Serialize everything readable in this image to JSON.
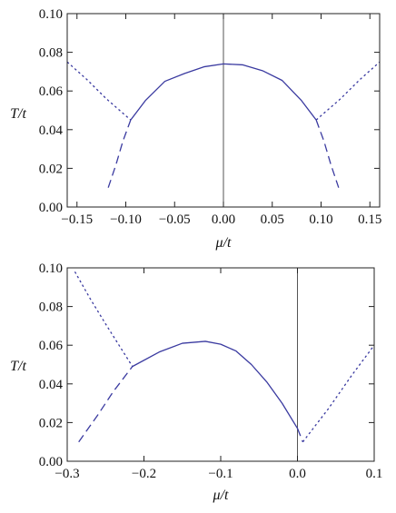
{
  "chart_data": [
    {
      "type": "line",
      "xlabel": "μ/t",
      "ylabel": "T/t",
      "xlim": [
        -0.16,
        0.16
      ],
      "ylim": [
        0.0,
        0.1
      ],
      "xticks": [
        -0.15,
        -0.1,
        -0.05,
        0.0,
        0.05,
        0.1,
        0.15
      ],
      "xtick_labels": [
        "−0.15",
        "−0.10",
        "−0.05",
        "0.00",
        "0.05",
        "0.10",
        "0.15"
      ],
      "yticks": [
        0.0,
        0.02,
        0.04,
        0.06,
        0.08,
        0.1
      ],
      "ytick_labels": [
        "0.00",
        "0.02",
        "0.04",
        "0.06",
        "0.08",
        "0.10"
      ],
      "vline_x": 0.0,
      "series": [
        {
          "style": "solid",
          "color": "#3a3aa0",
          "x": [
            -0.095,
            -0.08,
            -0.06,
            -0.04,
            -0.02,
            0.0,
            0.02,
            0.04,
            0.06,
            0.08,
            0.095
          ],
          "y": [
            0.045,
            0.055,
            0.065,
            0.069,
            0.0725,
            0.074,
            0.0735,
            0.0705,
            0.0655,
            0.055,
            0.045
          ]
        },
        {
          "style": "dashed",
          "color": "#3a3aa0",
          "x": [
            -0.118,
            -0.11,
            -0.103,
            -0.095
          ],
          "y": [
            0.01,
            0.022,
            0.034,
            0.045
          ]
        },
        {
          "style": "dashed",
          "color": "#3a3aa0",
          "x": [
            0.095,
            0.103,
            0.11,
            0.118
          ],
          "y": [
            0.045,
            0.034,
            0.022,
            0.01
          ]
        },
        {
          "style": "dotted",
          "color": "#3a3aa0",
          "x": [
            -0.16,
            -0.14,
            -0.12,
            -0.095
          ],
          "y": [
            0.075,
            0.066,
            0.056,
            0.045
          ]
        },
        {
          "style": "dotted",
          "color": "#3a3aa0",
          "x": [
            0.095,
            0.12,
            0.14,
            0.16
          ],
          "y": [
            0.045,
            0.056,
            0.066,
            0.075
          ]
        }
      ]
    },
    {
      "type": "line",
      "xlabel": "μ/t",
      "ylabel": "T/t",
      "xlim": [
        -0.3,
        0.1
      ],
      "ylim": [
        0.0,
        0.1
      ],
      "xticks": [
        -0.3,
        -0.2,
        -0.1,
        0.0,
        0.1
      ],
      "xtick_labels": [
        "−0.3",
        "−0.2",
        "−0.1",
        "0.0",
        "0.1"
      ],
      "yticks": [
        0.0,
        0.02,
        0.04,
        0.06,
        0.08,
        0.1
      ],
      "ytick_labels": [
        "0.00",
        "0.02",
        "0.04",
        "0.06",
        "0.08",
        "0.10"
      ],
      "vline_x": 0.0,
      "series": [
        {
          "style": "solid",
          "color": "#3a3aa0",
          "x": [
            -0.215,
            -0.18,
            -0.15,
            -0.12,
            -0.1,
            -0.08,
            -0.06,
            -0.04,
            -0.02,
            0.0
          ],
          "y": [
            0.049,
            0.0565,
            0.061,
            0.062,
            0.0605,
            0.057,
            0.05,
            0.041,
            0.03,
            0.017
          ]
        },
        {
          "style": "dashed",
          "color": "#3a3aa0",
          "x": [
            -0.285,
            -0.26,
            -0.24,
            -0.215
          ],
          "y": [
            0.01,
            0.024,
            0.036,
            0.049
          ]
        },
        {
          "style": "dashed",
          "color": "#3a3aa0",
          "x": [
            0.0,
            0.007
          ],
          "y": [
            0.017,
            0.01
          ]
        },
        {
          "style": "dotted",
          "color": "#3a3aa0",
          "x": [
            -0.29,
            -0.27,
            -0.25,
            -0.215
          ],
          "y": [
            0.098,
            0.084,
            0.071,
            0.049
          ]
        },
        {
          "style": "dotted",
          "color": "#3a3aa0",
          "x": [
            0.007,
            0.04,
            0.07,
            0.1
          ],
          "y": [
            0.01,
            0.027,
            0.044,
            0.06
          ]
        }
      ]
    }
  ]
}
